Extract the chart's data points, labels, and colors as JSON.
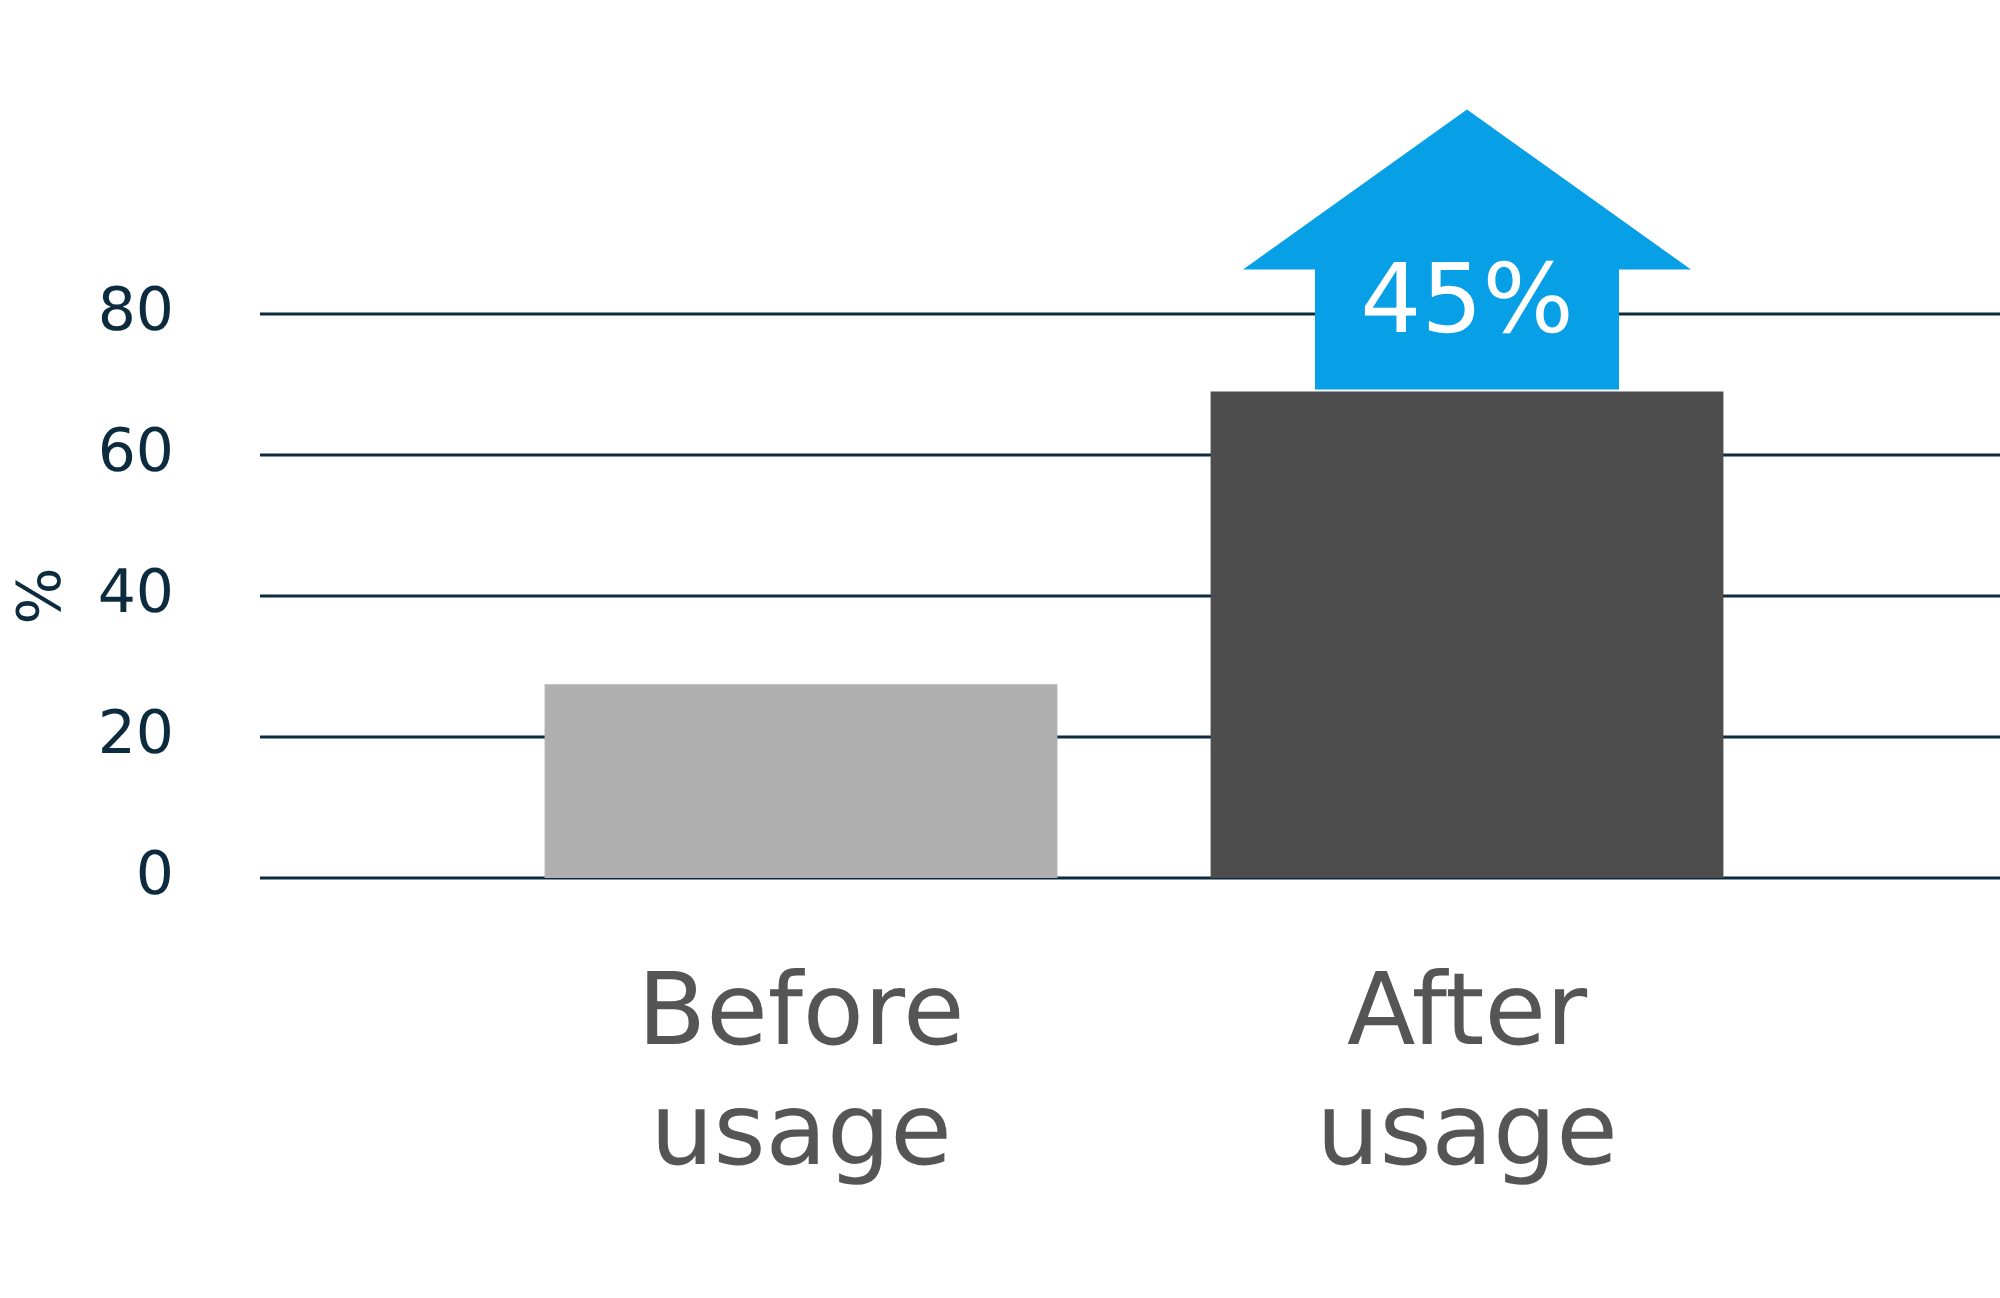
{
  "chart_data": {
    "type": "bar",
    "ylabel": "%",
    "categories": [
      "Before usage",
      "After usage"
    ],
    "values": [
      27.5,
      69
    ],
    "colors": [
      "#b0b0b0",
      "#4d4d4d"
    ],
    "ylim": [
      0,
      80
    ],
    "yticks": [
      0,
      20,
      40,
      60,
      80
    ],
    "grid": "y",
    "annotations": [
      "45%"
    ]
  }
}
